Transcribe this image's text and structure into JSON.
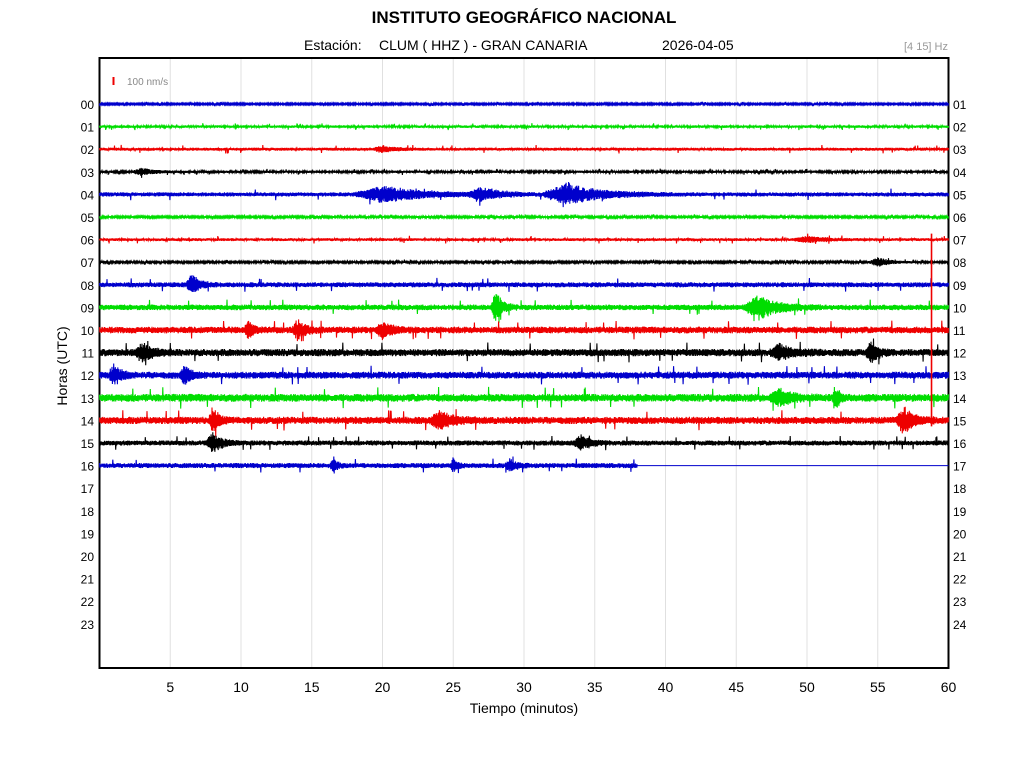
{
  "header": {
    "title": "INSTITUTO GEOGRÁFICO NACIONAL",
    "station_label": "Estación:",
    "station": "CLUM ( HHZ ) - GRAN CANARIA",
    "date": "2026-04-05",
    "filter": "[4 15] Hz"
  },
  "colors": {
    "blue": "#0000cc",
    "green": "#00dd00",
    "red": "#ee0000",
    "black": "#000000"
  },
  "chart_data": {
    "type": "line",
    "xlabel": "Tiempo (minutos)",
    "ylabel": "Horas (UTC)",
    "xlim": [
      0,
      60
    ],
    "x_ticks": [
      5,
      10,
      15,
      20,
      25,
      30,
      35,
      40,
      45,
      50,
      55,
      60
    ],
    "grid": true,
    "scale_bar_label": "100 nm/s",
    "left_tick_labels": [
      "00",
      "01",
      "02",
      "03",
      "04",
      "05",
      "06",
      "07",
      "08",
      "09",
      "10",
      "11",
      "12",
      "13",
      "14",
      "15",
      "16",
      "17",
      "18",
      "19",
      "20",
      "21",
      "22",
      "23"
    ],
    "right_tick_labels": [
      "01",
      "02",
      "03",
      "04",
      "05",
      "06",
      "07",
      "08",
      "09",
      "10",
      "11",
      "12",
      "13",
      "14",
      "15",
      "16",
      "17",
      "18",
      "19",
      "20",
      "21",
      "22",
      "23",
      "24"
    ],
    "color_cycle": [
      "blue",
      "green",
      "red",
      "black"
    ],
    "recorded_until_minute": 38,
    "traces": [
      {
        "hour": "00",
        "base_amp": 0.6,
        "events": []
      },
      {
        "hour": "01",
        "base_amp": 0.9,
        "events": []
      },
      {
        "hour": "02",
        "base_amp": 1.1,
        "events": [
          {
            "t": 20,
            "dur": 2,
            "amp": 2
          }
        ]
      },
      {
        "hour": "03",
        "base_amp": 0.8,
        "events": [
          {
            "t": 3,
            "dur": 2,
            "amp": 2.5
          }
        ]
      },
      {
        "hour": "04",
        "base_amp": 1.5,
        "events": [
          {
            "t": 20,
            "dur": 6,
            "amp": 5
          },
          {
            "t": 33,
            "dur": 5,
            "amp": 7
          },
          {
            "t": 27,
            "dur": 3,
            "amp": 4
          }
        ]
      },
      {
        "hour": "05",
        "base_amp": 0.7,
        "events": []
      },
      {
        "hour": "06",
        "base_amp": 1.0,
        "events": [
          {
            "t": 50,
            "dur": 3,
            "amp": 2
          }
        ]
      },
      {
        "hour": "07",
        "base_amp": 0.7,
        "events": [
          {
            "t": 55,
            "dur": 2,
            "amp": 3
          }
        ]
      },
      {
        "hour": "08",
        "base_amp": 1.8,
        "events": [
          {
            "t": 6.5,
            "dur": 1.2,
            "amp": 7
          }
        ]
      },
      {
        "hour": "09",
        "base_amp": 2.0,
        "events": [
          {
            "t": 28,
            "dur": 1,
            "amp": 10
          },
          {
            "t": 46.5,
            "dur": 3,
            "amp": 8
          }
        ]
      },
      {
        "hour": "10",
        "base_amp": 2.4,
        "events": [
          {
            "t": 10.5,
            "dur": 0.8,
            "amp": 6
          },
          {
            "t": 14,
            "dur": 1.2,
            "amp": 6
          },
          {
            "t": 20,
            "dur": 1.5,
            "amp": 5
          }
        ]
      },
      {
        "hour": "11",
        "base_amp": 2.6,
        "events": [
          {
            "t": 3,
            "dur": 1.5,
            "amp": 6
          },
          {
            "t": 48,
            "dur": 2,
            "amp": 5
          },
          {
            "t": 54.5,
            "dur": 1,
            "amp": 7
          }
        ]
      },
      {
        "hour": "12",
        "base_amp": 2.5,
        "events": [
          {
            "t": 1,
            "dur": 1,
            "amp": 7
          },
          {
            "t": 6,
            "dur": 1,
            "amp": 6
          }
        ]
      },
      {
        "hour": "13",
        "base_amp": 2.8,
        "events": [
          {
            "t": 52,
            "dur": 0.6,
            "amp": 9
          },
          {
            "t": 48,
            "dur": 2,
            "amp": 5
          }
        ]
      },
      {
        "hour": "14",
        "base_amp": 2.6,
        "events": [
          {
            "t": 8,
            "dur": 0.8,
            "amp": 9
          },
          {
            "t": 24,
            "dur": 2,
            "amp": 6
          },
          {
            "t": 56.8,
            "dur": 1.5,
            "amp": 9
          }
        ]
      },
      {
        "hour": "15",
        "base_amp": 1.8,
        "events": [
          {
            "t": 8,
            "dur": 1.5,
            "amp": 6
          },
          {
            "t": 34,
            "dur": 1.5,
            "amp": 5
          }
        ]
      },
      {
        "hour": "16",
        "base_amp": 1.8,
        "events": [
          {
            "t": 16.5,
            "dur": 0.6,
            "amp": 6
          },
          {
            "t": 25,
            "dur": 0.6,
            "amp": 5
          },
          {
            "t": 29,
            "dur": 1,
            "amp": 4
          }
        ]
      }
    ],
    "large_spike": {
      "hour_start": "06",
      "hour_end": "14",
      "t": 58.8
    }
  }
}
